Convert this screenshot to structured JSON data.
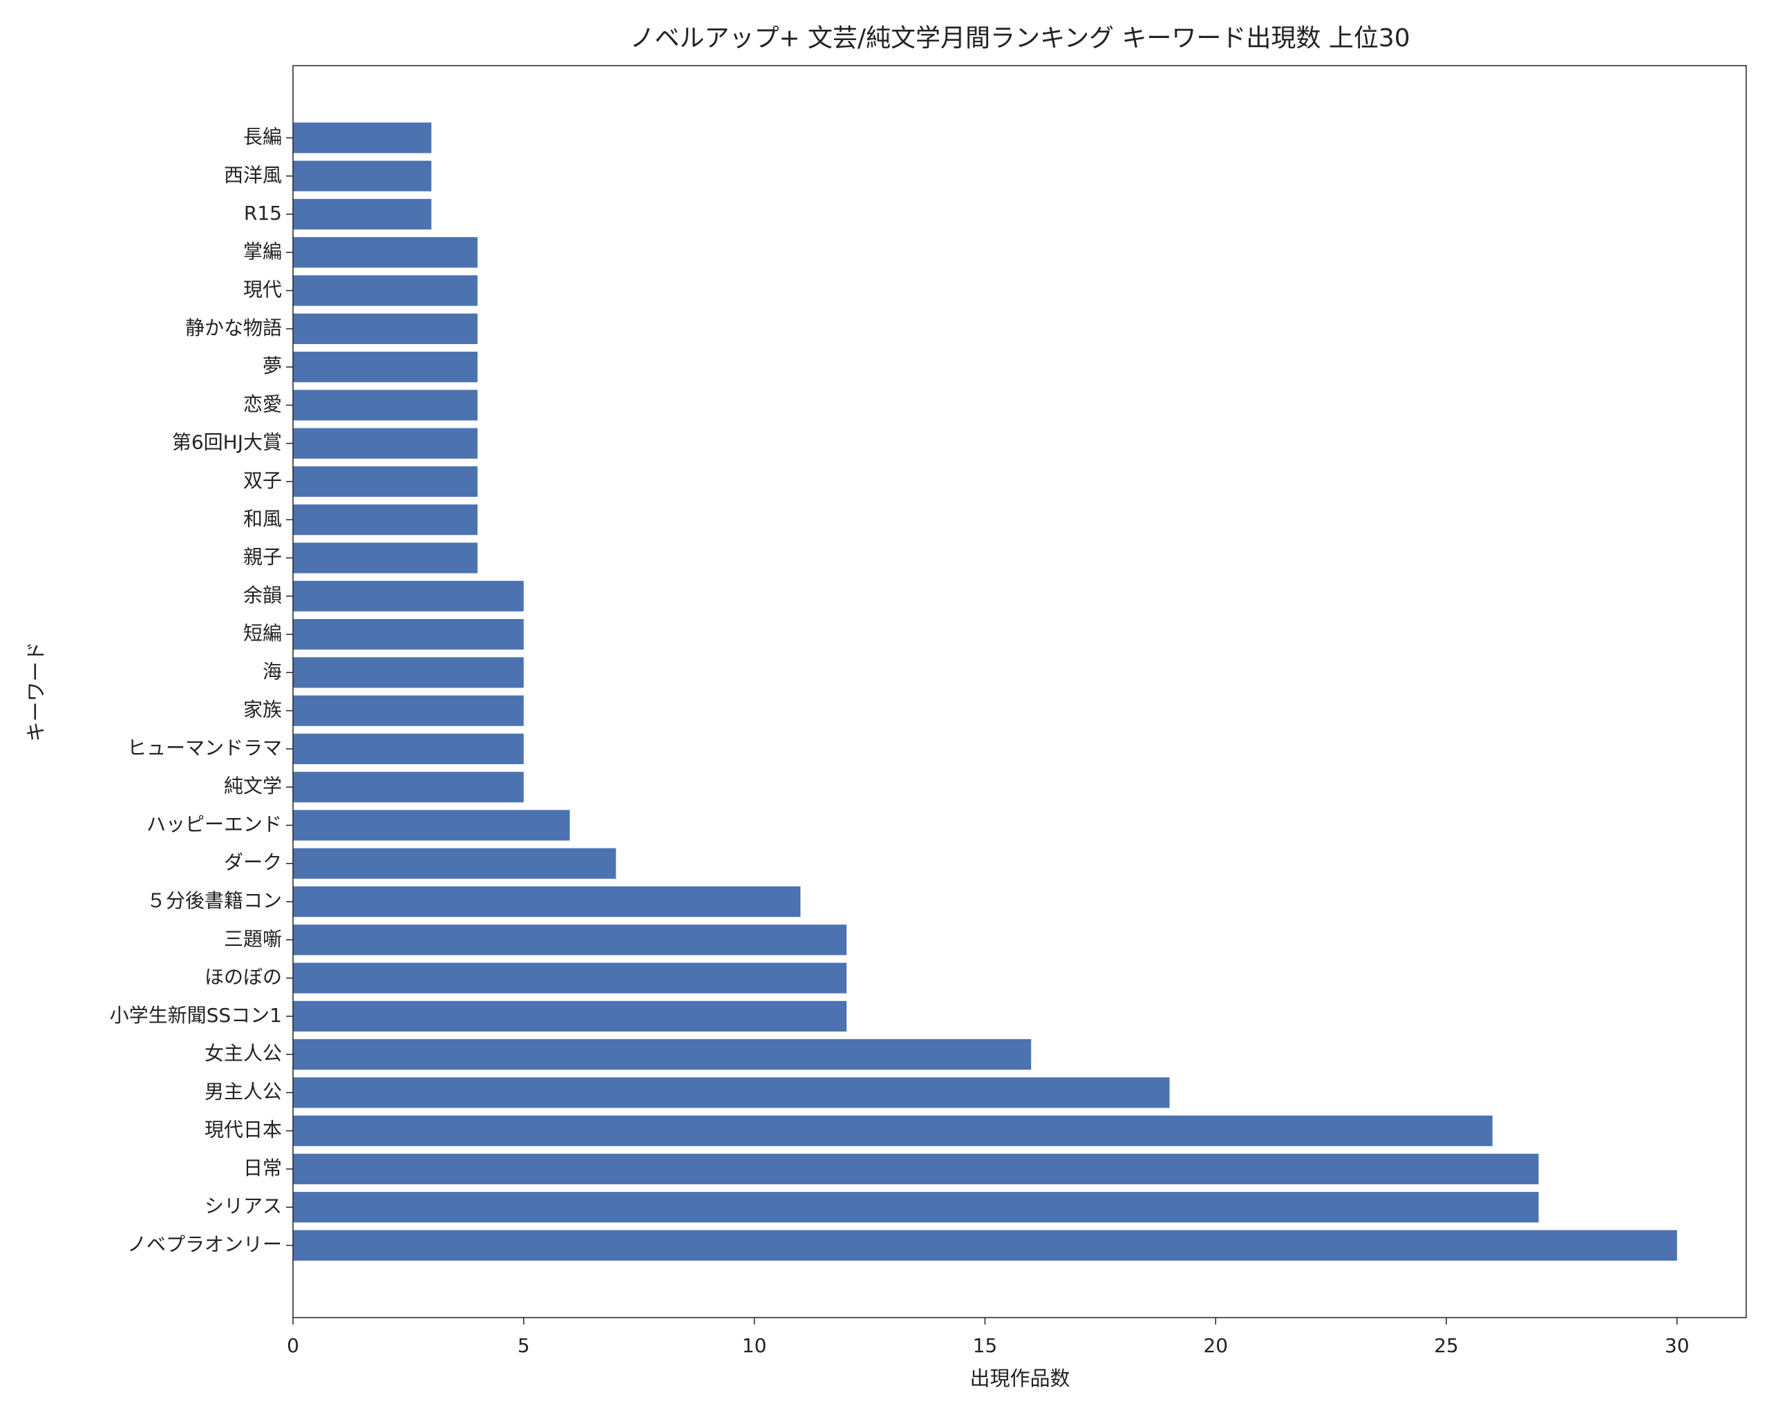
{
  "chart_data": {
    "type": "barh",
    "title": "ノベルアップ+ 文芸/純文学月間ランキング キーワード出現数 上位30",
    "xlabel": "出現作品数",
    "ylabel": "キーワード",
    "categories": [
      "ノベプラオンリー",
      "シリアス",
      "日常",
      "現代日本",
      "男主人公",
      "女主人公",
      "小学生新聞SSコン1",
      "ほのぼの",
      "三題噺",
      "５分後書籍コン",
      "ダーク",
      "ハッピーエンド",
      "純文学",
      "ヒューマンドラマ",
      "家族",
      "海",
      "短編",
      "余韻",
      "親子",
      "和風",
      "双子",
      "第6回HJ大賞",
      "恋愛",
      "夢",
      "静かな物語",
      "現代",
      "掌編",
      "R15",
      "西洋風",
      "長編"
    ],
    "values": [
      30,
      27,
      27,
      26,
      19,
      16,
      12,
      12,
      12,
      11,
      7,
      6,
      5,
      5,
      5,
      5,
      5,
      5,
      4,
      4,
      4,
      4,
      4,
      4,
      4,
      4,
      4,
      3,
      3,
      3
    ],
    "color": "#4c72b0",
    "xlim": [
      0,
      31.5
    ],
    "xticks": [
      0,
      5,
      10,
      15,
      20,
      25,
      30
    ]
  }
}
